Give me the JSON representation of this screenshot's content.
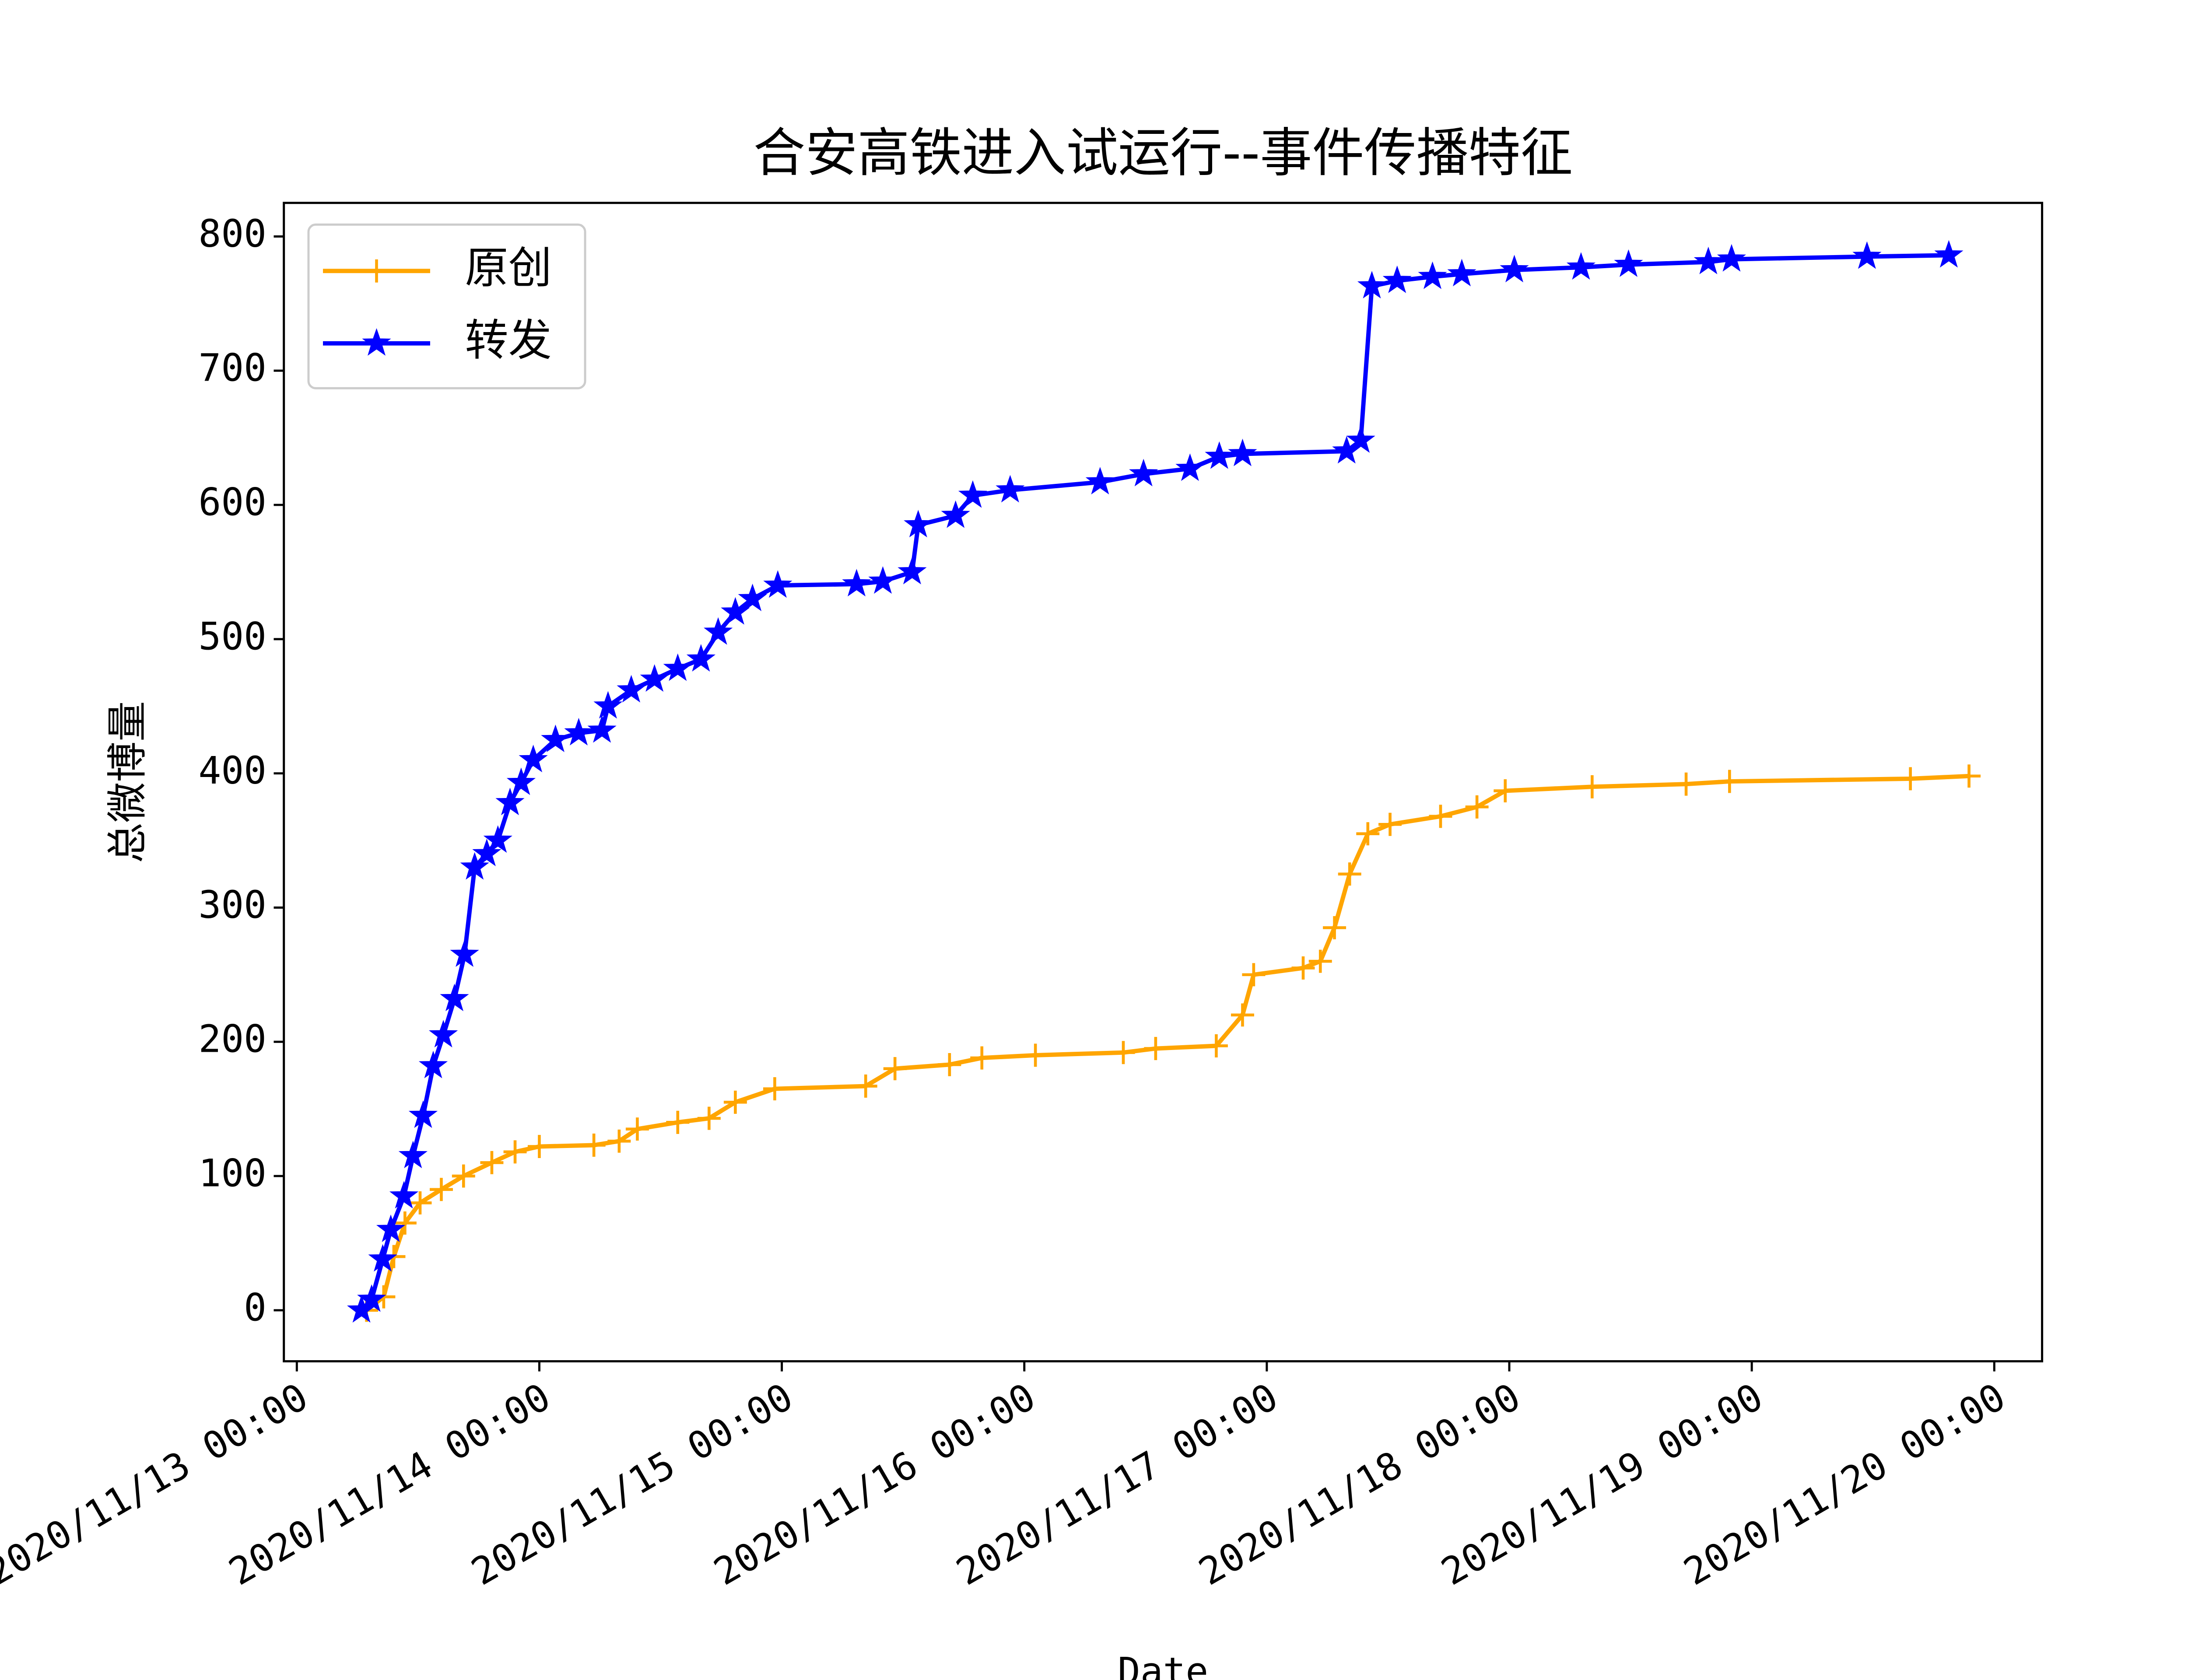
{
  "chart_data": {
    "type": "line",
    "title": "合安高铁进入试运行--事件传播特征",
    "x_label": "Date",
    "y_label": "总微博量",
    "xlim": [
      "2020/11/12 22:43",
      "2020/11/20 04:44"
    ],
    "xticks": [
      "2020/11/13 00:00",
      "2020/11/14 00:00",
      "2020/11/15 00:00",
      "2020/11/16 00:00",
      "2020/11/17 00:00",
      "2020/11/18 00:00",
      "2020/11/19 00:00",
      "2020/11/20 00:00"
    ],
    "ylim": [
      -38,
      825
    ],
    "yticks": [
      0,
      100,
      200,
      300,
      400,
      500,
      600,
      700,
      800
    ],
    "grid": false,
    "legend": "upper left",
    "series": [
      {
        "name": "原创",
        "color": "#ffa500",
        "marker": "plus",
        "x": [
          "2020/11/13 06:54",
          "2020/11/13 08:36",
          "2020/11/13 09:36",
          "2020/11/13 10:42",
          "2020/11/13 12:12",
          "2020/11/13 14:18",
          "2020/11/13 16:30",
          "2020/11/13 19:18",
          "2020/11/13 21:36",
          "2020/11/14 00:00",
          "2020/11/14 05:24",
          "2020/11/14 07:54",
          "2020/11/14 09:42",
          "2020/11/14 13:42",
          "2020/11/14 16:48",
          "2020/11/14 19:24",
          "2020/11/14 23:18",
          "2020/11/15 08:18",
          "2020/11/15 11:12",
          "2020/11/15 16:36",
          "2020/11/15 19:48",
          "2020/11/16 01:06",
          "2020/11/16 09:48",
          "2020/11/16 13:00",
          "2020/11/16 19:00",
          "2020/11/16 21:36",
          "2020/11/16 22:42",
          "2020/11/17 03:36",
          "2020/11/17 05:18",
          "2020/11/17 06:42",
          "2020/11/17 08:12",
          "2020/11/17 10:00",
          "2020/11/17 12:12",
          "2020/11/17 17:12",
          "2020/11/17 20:48",
          "2020/11/17 23:36",
          "2020/11/18 08:12",
          "2020/11/18 17:30",
          "2020/11/18 21:48",
          "2020/11/19 15:42",
          "2020/11/19 21:30"
        ],
        "values": [
          0,
          10,
          40,
          65,
          80,
          90,
          100,
          110,
          118,
          122,
          123,
          126,
          135,
          140,
          143,
          155,
          165,
          167,
          180,
          183,
          188,
          190,
          192,
          195,
          197,
          220,
          250,
          255,
          260,
          285,
          325,
          355,
          362,
          368,
          375,
          387,
          390,
          392,
          394,
          396,
          398
        ]
      },
      {
        "name": "转发",
        "color": "#0000ff",
        "marker": "star",
        "x": [
          "2020/11/13 06:24",
          "2020/11/13 07:24",
          "2020/11/13 08:30",
          "2020/11/13 09:18",
          "2020/11/13 10:36",
          "2020/11/13 11:30",
          "2020/11/13 12:30",
          "2020/11/13 13:30",
          "2020/11/13 14:30",
          "2020/11/13 15:36",
          "2020/11/13 16:36",
          "2020/11/13 17:36",
          "2020/11/13 18:48",
          "2020/11/13 19:54",
          "2020/11/13 21:06",
          "2020/11/13 22:12",
          "2020/11/13 23:24",
          "2020/11/14 01:36",
          "2020/11/14 03:54",
          "2020/11/14 06:12",
          "2020/11/14 06:48",
          "2020/11/14 09:06",
          "2020/11/14 11:24",
          "2020/11/14 13:42",
          "2020/11/14 16:00",
          "2020/11/14 17:42",
          "2020/11/14 19:24",
          "2020/11/14 21:06",
          "2020/11/14 23:36",
          "2020/11/15 07:24",
          "2020/11/15 10:00",
          "2020/11/15 12:54",
          "2020/11/15 13:30",
          "2020/11/15 17:12",
          "2020/11/15 18:54",
          "2020/11/15 22:36",
          "2020/11/16 07:30",
          "2020/11/16 11:48",
          "2020/11/16 16:24",
          "2020/11/16 19:18",
          "2020/11/16 21:36",
          "2020/11/17 07:54",
          "2020/11/17 09:18",
          "2020/11/17 10:24",
          "2020/11/17 12:54",
          "2020/11/17 16:24",
          "2020/11/17 19:18",
          "2020/11/18 00:30",
          "2020/11/18 07:06",
          "2020/11/18 11:48",
          "2020/11/18 19:42",
          "2020/11/18 22:00",
          "2020/11/19 11:24",
          "2020/11/19 19:30"
        ],
        "values": [
          0,
          8,
          38,
          60,
          85,
          115,
          145,
          182,
          205,
          232,
          265,
          330,
          340,
          350,
          378,
          393,
          410,
          425,
          430,
          432,
          450,
          462,
          470,
          478,
          485,
          505,
          520,
          530,
          540,
          541,
          543,
          550,
          585,
          592,
          607,
          611,
          617,
          623,
          627,
          636,
          638,
          640,
          648,
          763,
          767,
          770,
          772,
          775,
          777,
          779,
          781,
          783,
          785,
          786
        ]
      }
    ]
  }
}
